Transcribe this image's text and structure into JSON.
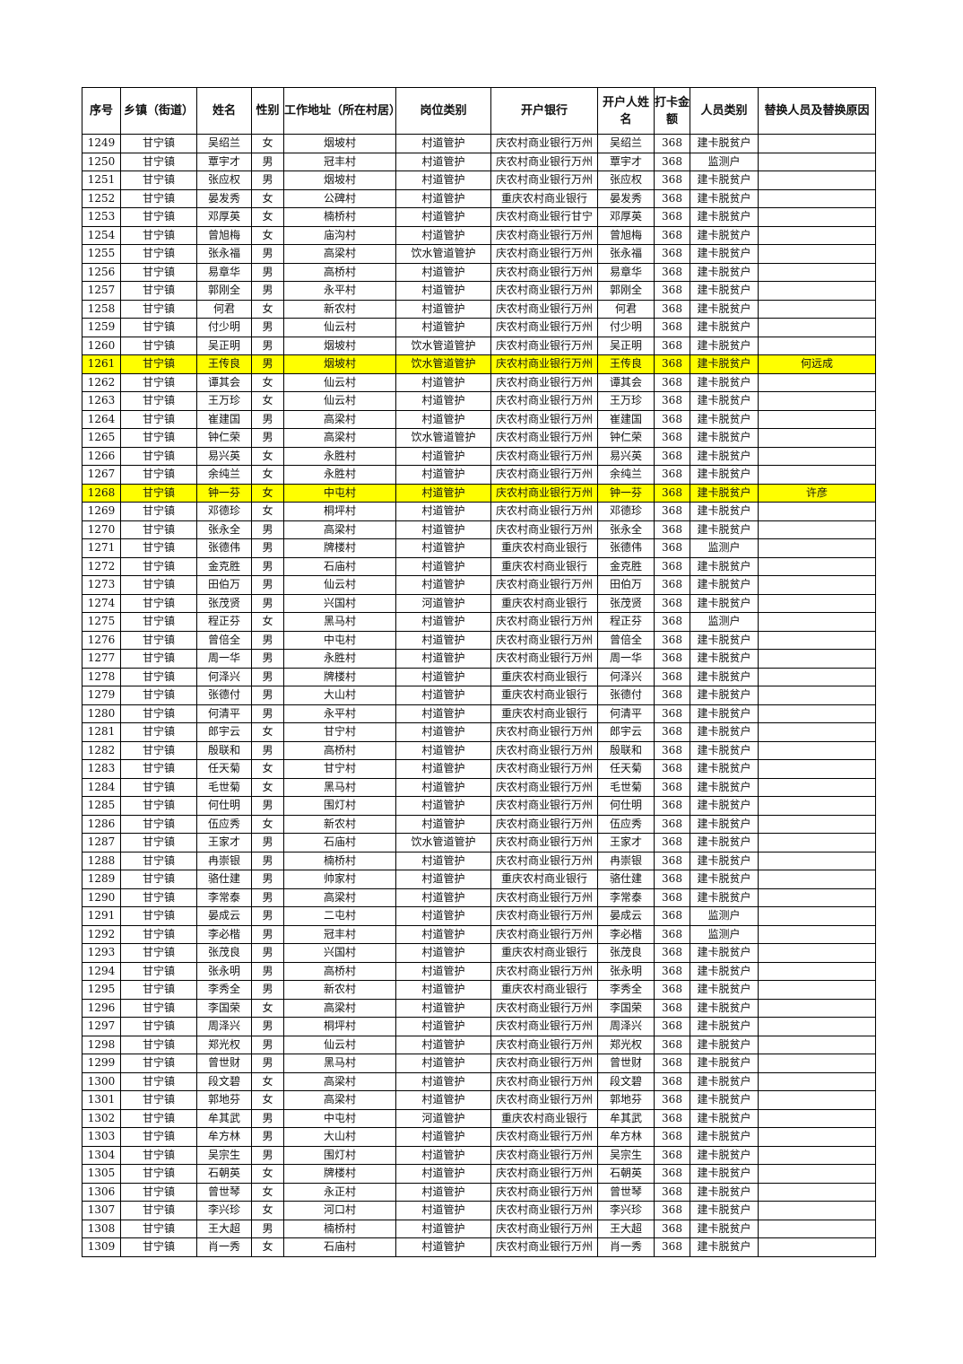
{
  "headers": [
    "序号",
    "乡镇（街道）",
    "姓名",
    "性别",
    "工作地址（所在村居）",
    "岗位类别",
    "开户银行",
    "开户人姓名",
    "打卡金额",
    "人员类别",
    "替换人员及替换原因"
  ],
  "highlight_color": "#ffff00",
  "rows": [
    [
      "1249",
      "甘宁镇",
      "吴绍兰",
      "女",
      "烟坡村",
      "村道管护",
      "庆农村商业银行万州",
      "吴绍兰",
      "368",
      "建卡脱贫户",
      ""
    ],
    [
      "1250",
      "甘宁镇",
      "覃宇才",
      "男",
      "冠丰村",
      "村道管护",
      "庆农村商业银行万州",
      "覃宇才",
      "368",
      "监测户",
      ""
    ],
    [
      "1251",
      "甘宁镇",
      "张应权",
      "男",
      "烟坡村",
      "村道管护",
      "庆农村商业银行万州",
      "张应权",
      "368",
      "建卡脱贫户",
      ""
    ],
    [
      "1252",
      "甘宁镇",
      "晏发秀",
      "女",
      "公碑村",
      "村道管护",
      "重庆农村商业银行",
      "晏发秀",
      "368",
      "建卡脱贫户",
      ""
    ],
    [
      "1253",
      "甘宁镇",
      "邓厚英",
      "女",
      "楠桥村",
      "村道管护",
      "庆农村商业银行甘宁",
      "邓厚英",
      "368",
      "建卡脱贫户",
      ""
    ],
    [
      "1254",
      "甘宁镇",
      "曾旭梅",
      "女",
      "庙沟村",
      "村道管护",
      "庆农村商业银行万州",
      "曾旭梅",
      "368",
      "建卡脱贫户",
      ""
    ],
    [
      "1255",
      "甘宁镇",
      "张永福",
      "男",
      "高梁村",
      "饮水管道管护",
      "庆农村商业银行万州",
      "张永福",
      "368",
      "建卡脱贫户",
      ""
    ],
    [
      "1256",
      "甘宁镇",
      "易章华",
      "男",
      "高桥村",
      "村道管护",
      "庆农村商业银行万州",
      "易章华",
      "368",
      "建卡脱贫户",
      ""
    ],
    [
      "1257",
      "甘宁镇",
      "郭刚全",
      "男",
      "永平村",
      "村道管护",
      "庆农村商业银行万州",
      "郭刚全",
      "368",
      "建卡脱贫户",
      ""
    ],
    [
      "1258",
      "甘宁镇",
      "何君",
      "女",
      "新农村",
      "村道管护",
      "庆农村商业银行万州",
      "何君",
      "368",
      "建卡脱贫户",
      ""
    ],
    [
      "1259",
      "甘宁镇",
      "付少明",
      "男",
      "仙云村",
      "村道管护",
      "庆农村商业银行万州",
      "付少明",
      "368",
      "建卡脱贫户",
      ""
    ],
    [
      "1260",
      "甘宁镇",
      "吴正明",
      "男",
      "烟坡村",
      "饮水管道管护",
      "庆农村商业银行万州",
      "吴正明",
      "368",
      "建卡脱贫户",
      ""
    ],
    [
      "1261",
      "甘宁镇",
      "王传良",
      "男",
      "烟坡村",
      "饮水管道管护",
      "庆农村商业银行万州",
      "王传良",
      "368",
      "建卡脱贫户",
      "何远成"
    ],
    [
      "1262",
      "甘宁镇",
      "谭其会",
      "女",
      "仙云村",
      "村道管护",
      "庆农村商业银行万州",
      "谭其会",
      "368",
      "建卡脱贫户",
      ""
    ],
    [
      "1263",
      "甘宁镇",
      "王万珍",
      "女",
      "仙云村",
      "村道管护",
      "庆农村商业银行万州",
      "王万珍",
      "368",
      "建卡脱贫户",
      ""
    ],
    [
      "1264",
      "甘宁镇",
      "崔建国",
      "男",
      "高梁村",
      "村道管护",
      "庆农村商业银行万州",
      "崔建国",
      "368",
      "建卡脱贫户",
      ""
    ],
    [
      "1265",
      "甘宁镇",
      "钟仁荣",
      "男",
      "高梁村",
      "饮水管道管护",
      "庆农村商业银行万州",
      "钟仁荣",
      "368",
      "建卡脱贫户",
      ""
    ],
    [
      "1266",
      "甘宁镇",
      "易兴英",
      "女",
      "永胜村",
      "村道管护",
      "庆农村商业银行万州",
      "易兴英",
      "368",
      "建卡脱贫户",
      ""
    ],
    [
      "1267",
      "甘宁镇",
      "余纯兰",
      "女",
      "永胜村",
      "村道管护",
      "庆农村商业银行万州",
      "余纯兰",
      "368",
      "建卡脱贫户",
      ""
    ],
    [
      "1268",
      "甘宁镇",
      "钟一芬",
      "女",
      "中屯村",
      "村道管护",
      "庆农村商业银行万州",
      "钟一芬",
      "368",
      "建卡脱贫户",
      "许彦"
    ],
    [
      "1269",
      "甘宁镇",
      "邓德珍",
      "女",
      "桐坪村",
      "村道管护",
      "庆农村商业银行万州",
      "邓德珍",
      "368",
      "建卡脱贫户",
      ""
    ],
    [
      "1270",
      "甘宁镇",
      "张永全",
      "男",
      "高梁村",
      "村道管护",
      "庆农村商业银行万州",
      "张永全",
      "368",
      "建卡脱贫户",
      ""
    ],
    [
      "1271",
      "甘宁镇",
      "张德伟",
      "男",
      "牌楼村",
      "村道管护",
      "重庆农村商业银行",
      "张德伟",
      "368",
      "监测户",
      ""
    ],
    [
      "1272",
      "甘宁镇",
      "金克胜",
      "男",
      "石庙村",
      "村道管护",
      "重庆农村商业银行",
      "金克胜",
      "368",
      "建卡脱贫户",
      ""
    ],
    [
      "1273",
      "甘宁镇",
      "田伯万",
      "男",
      "仙云村",
      "村道管护",
      "庆农村商业银行万州",
      "田伯万",
      "368",
      "建卡脱贫户",
      ""
    ],
    [
      "1274",
      "甘宁镇",
      "张茂贤",
      "男",
      "兴国村",
      "河道管护",
      "重庆农村商业银行",
      "张茂贤",
      "368",
      "建卡脱贫户",
      ""
    ],
    [
      "1275",
      "甘宁镇",
      "程正芬",
      "女",
      "黑马村",
      "村道管护",
      "庆农村商业银行万州",
      "程正芬",
      "368",
      "监测户",
      ""
    ],
    [
      "1276",
      "甘宁镇",
      "曾倍全",
      "男",
      "中屯村",
      "村道管护",
      "庆农村商业银行万州",
      "曾倍全",
      "368",
      "建卡脱贫户",
      ""
    ],
    [
      "1277",
      "甘宁镇",
      "周一华",
      "男",
      "永胜村",
      "村道管护",
      "庆农村商业银行万州",
      "周一华",
      "368",
      "建卡脱贫户",
      ""
    ],
    [
      "1278",
      "甘宁镇",
      "何泽兴",
      "男",
      "牌楼村",
      "村道管护",
      "重庆农村商业银行",
      "何泽兴",
      "368",
      "建卡脱贫户",
      ""
    ],
    [
      "1279",
      "甘宁镇",
      "张德付",
      "男",
      "大山村",
      "村道管护",
      "重庆农村商业银行",
      "张德付",
      "368",
      "建卡脱贫户",
      ""
    ],
    [
      "1280",
      "甘宁镇",
      "何清平",
      "男",
      "永平村",
      "村道管护",
      "重庆农村商业银行",
      "何清平",
      "368",
      "建卡脱贫户",
      ""
    ],
    [
      "1281",
      "甘宁镇",
      "郎宇云",
      "女",
      "甘宁村",
      "村道管护",
      "庆农村商业银行万州",
      "郎宇云",
      "368",
      "建卡脱贫户",
      ""
    ],
    [
      "1282",
      "甘宁镇",
      "殷联和",
      "男",
      "高桥村",
      "村道管护",
      "庆农村商业银行万州",
      "殷联和",
      "368",
      "建卡脱贫户",
      ""
    ],
    [
      "1283",
      "甘宁镇",
      "任天菊",
      "女",
      "甘宁村",
      "村道管护",
      "庆农村商业银行万州",
      "任天菊",
      "368",
      "建卡脱贫户",
      ""
    ],
    [
      "1284",
      "甘宁镇",
      "毛世菊",
      "女",
      "黑马村",
      "村道管护",
      "庆农村商业银行万州",
      "毛世菊",
      "368",
      "建卡脱贫户",
      ""
    ],
    [
      "1285",
      "甘宁镇",
      "何仕明",
      "男",
      "围灯村",
      "村道管护",
      "庆农村商业银行万州",
      "何仕明",
      "368",
      "建卡脱贫户",
      ""
    ],
    [
      "1286",
      "甘宁镇",
      "伍应秀",
      "女",
      "新农村",
      "村道管护",
      "庆农村商业银行万州",
      "伍应秀",
      "368",
      "建卡脱贫户",
      ""
    ],
    [
      "1287",
      "甘宁镇",
      "王家才",
      "男",
      "石庙村",
      "饮水管道管护",
      "庆农村商业银行万州",
      "王家才",
      "368",
      "建卡脱贫户",
      ""
    ],
    [
      "1288",
      "甘宁镇",
      "冉崇银",
      "男",
      "楠桥村",
      "村道管护",
      "庆农村商业银行万州",
      "冉崇银",
      "368",
      "建卡脱贫户",
      ""
    ],
    [
      "1289",
      "甘宁镇",
      "骆仕建",
      "男",
      "帅家村",
      "村道管护",
      "重庆农村商业银行",
      "骆仕建",
      "368",
      "建卡脱贫户",
      ""
    ],
    [
      "1290",
      "甘宁镇",
      "李常泰",
      "男",
      "高梁村",
      "村道管护",
      "庆农村商业银行万州",
      "李常泰",
      "368",
      "建卡脱贫户",
      ""
    ],
    [
      "1291",
      "甘宁镇",
      "晏成云",
      "男",
      "二屯村",
      "村道管护",
      "庆农村商业银行万州",
      "晏成云",
      "368",
      "监测户",
      ""
    ],
    [
      "1292",
      "甘宁镇",
      "李必楷",
      "男",
      "冠丰村",
      "村道管护",
      "庆农村商业银行万州",
      "李必楷",
      "368",
      "监测户",
      ""
    ],
    [
      "1293",
      "甘宁镇",
      "张茂良",
      "男",
      "兴国村",
      "村道管护",
      "重庆农村商业银行",
      "张茂良",
      "368",
      "建卡脱贫户",
      ""
    ],
    [
      "1294",
      "甘宁镇",
      "张永明",
      "男",
      "高桥村",
      "村道管护",
      "庆农村商业银行万州",
      "张永明",
      "368",
      "建卡脱贫户",
      ""
    ],
    [
      "1295",
      "甘宁镇",
      "李秀全",
      "男",
      "新农村",
      "村道管护",
      "重庆农村商业银行",
      "李秀全",
      "368",
      "建卡脱贫户",
      ""
    ],
    [
      "1296",
      "甘宁镇",
      "李国荣",
      "女",
      "高梁村",
      "村道管护",
      "庆农村商业银行万州",
      "李国荣",
      "368",
      "建卡脱贫户",
      ""
    ],
    [
      "1297",
      "甘宁镇",
      "周泽兴",
      "男",
      "桐坪村",
      "村道管护",
      "庆农村商业银行万州",
      "周泽兴",
      "368",
      "建卡脱贫户",
      ""
    ],
    [
      "1298",
      "甘宁镇",
      "郑光权",
      "男",
      "仙云村",
      "村道管护",
      "庆农村商业银行万州",
      "郑光权",
      "368",
      "建卡脱贫户",
      ""
    ],
    [
      "1299",
      "甘宁镇",
      "曾世财",
      "男",
      "黑马村",
      "村道管护",
      "庆农村商业银行万州",
      "曾世财",
      "368",
      "建卡脱贫户",
      ""
    ],
    [
      "1300",
      "甘宁镇",
      "段文碧",
      "女",
      "高梁村",
      "村道管护",
      "庆农村商业银行万州",
      "段文碧",
      "368",
      "建卡脱贫户",
      ""
    ],
    [
      "1301",
      "甘宁镇",
      "郭地芬",
      "女",
      "高梁村",
      "村道管护",
      "庆农村商业银行万州",
      "郭地芬",
      "368",
      "建卡脱贫户",
      ""
    ],
    [
      "1302",
      "甘宁镇",
      "牟其武",
      "男",
      "中屯村",
      "河道管护",
      "重庆农村商业银行",
      "牟其武",
      "368",
      "建卡脱贫户",
      ""
    ],
    [
      "1303",
      "甘宁镇",
      "牟方林",
      "男",
      "大山村",
      "村道管护",
      "庆农村商业银行万州",
      "牟方林",
      "368",
      "建卡脱贫户",
      ""
    ],
    [
      "1304",
      "甘宁镇",
      "吴宗生",
      "男",
      "围灯村",
      "村道管护",
      "庆农村商业银行万州",
      "吴宗生",
      "368",
      "建卡脱贫户",
      ""
    ],
    [
      "1305",
      "甘宁镇",
      "石朝英",
      "女",
      "牌楼村",
      "村道管护",
      "庆农村商业银行万州",
      "石朝英",
      "368",
      "建卡脱贫户",
      ""
    ],
    [
      "1306",
      "甘宁镇",
      "曾世琴",
      "女",
      "永正村",
      "村道管护",
      "庆农村商业银行万州",
      "曾世琴",
      "368",
      "建卡脱贫户",
      ""
    ],
    [
      "1307",
      "甘宁镇",
      "李兴珍",
      "女",
      "河口村",
      "村道管护",
      "庆农村商业银行万州",
      "李兴珍",
      "368",
      "建卡脱贫户",
      ""
    ],
    [
      "1308",
      "甘宁镇",
      "王大超",
      "男",
      "楠桥村",
      "村道管护",
      "庆农村商业银行万州",
      "王大超",
      "368",
      "建卡脱贫户",
      ""
    ],
    [
      "1309",
      "甘宁镇",
      "肖一秀",
      "女",
      "石庙村",
      "村道管护",
      "庆农村商业银行万州",
      "肖一秀",
      "368",
      "建卡脱贫户",
      ""
    ]
  ],
  "highlighted_rows": [
    "1261",
    "1268"
  ]
}
